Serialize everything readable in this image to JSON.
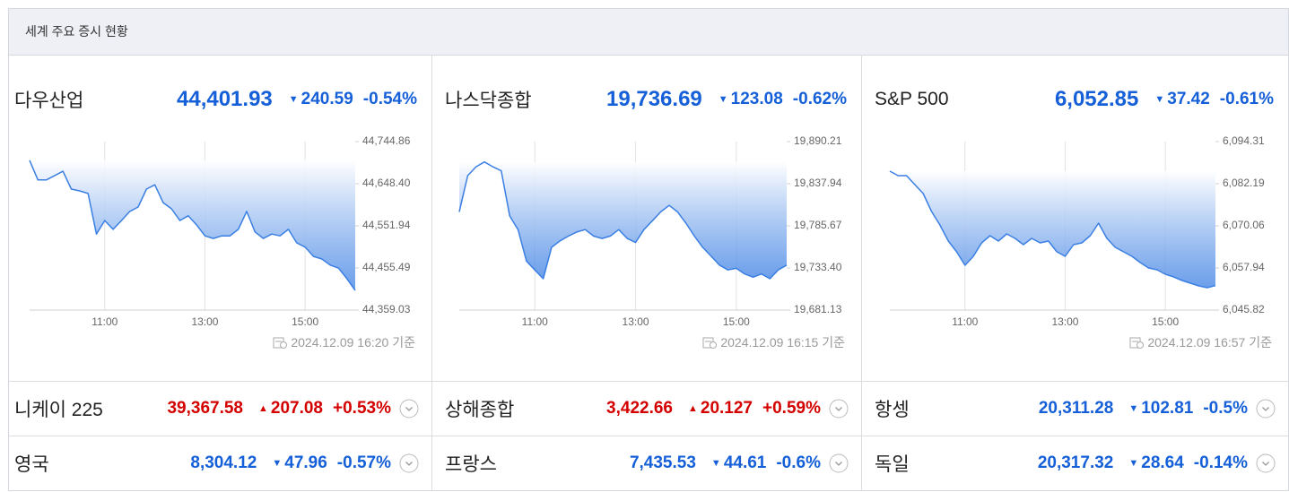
{
  "title": "세계 주요 증시 현황",
  "panels": [
    {
      "name": "다우산업",
      "price": "44,401.93",
      "arrow": "▼",
      "change": "240.59",
      "change_pct": "-0.54%",
      "color": "#1560d8",
      "timestamp": "2024.12.09 16:20 기준"
    },
    {
      "name": "나스닥종합",
      "price": "19,736.69",
      "arrow": "▼",
      "change": "123.08",
      "change_pct": "-0.62%",
      "color": "#1560d8",
      "timestamp": "2024.12.09 16:15 기준"
    },
    {
      "name": "S&P 500",
      "price": "6,052.85",
      "arrow": "▼",
      "change": "37.42",
      "change_pct": "-0.61%",
      "color": "#1560d8",
      "timestamp": "2024.12.09 16:57 기준"
    }
  ],
  "rows": [
    [
      {
        "name": "니케이 225",
        "price": "39,367.58",
        "arrow": "▲",
        "change": "207.08",
        "change_pct": "+0.53%",
        "color": "#d40000"
      },
      {
        "name": "상해종합",
        "price": "3,422.66",
        "arrow": "▲",
        "change": "20.127",
        "change_pct": "+0.59%",
        "color": "#d40000"
      },
      {
        "name": "항셍",
        "price": "20,311.28",
        "arrow": "▼",
        "change": "102.81",
        "change_pct": "-0.5%",
        "color": "#1560d8"
      }
    ],
    [
      {
        "name": "영국",
        "price": "8,304.12",
        "arrow": "▼",
        "change": "47.96",
        "change_pct": "-0.57%",
        "color": "#1560d8"
      },
      {
        "name": "프랑스",
        "price": "7,435.53",
        "arrow": "▼",
        "change": "44.61",
        "change_pct": "-0.6%",
        "color": "#1560d8"
      },
      {
        "name": "독일",
        "price": "20,317.32",
        "arrow": "▼",
        "change": "28.64",
        "change_pct": "-0.14%",
        "color": "#1560d8"
      }
    ]
  ],
  "chart_data": [
    {
      "type": "line",
      "color": "#3b7fe3",
      "grid": "x",
      "x": [
        "09:30",
        "09:40",
        "09:50",
        "10:00",
        "10:10",
        "10:20",
        "10:30",
        "10:40",
        "10:50",
        "11:00",
        "11:10",
        "11:20",
        "11:30",
        "11:40",
        "11:50",
        "12:00",
        "12:10",
        "12:20",
        "12:30",
        "12:40",
        "12:50",
        "13:00",
        "13:10",
        "13:20",
        "13:30",
        "13:40",
        "13:50",
        "14:00",
        "14:10",
        "14:20",
        "14:30",
        "14:40",
        "14:50",
        "15:00",
        "15:10",
        "15:20",
        "15:30",
        "15:40",
        "15:50",
        "16:00"
      ],
      "values": [
        44702,
        44657,
        44657,
        44667,
        44677,
        44636,
        44632,
        44626,
        44533,
        44564,
        44544,
        44564,
        44585,
        44595,
        44636,
        44646,
        44605,
        44591,
        44564,
        44575,
        44554,
        44529,
        44523,
        44529,
        44529,
        44544,
        44585,
        44538,
        44523,
        44533,
        44529,
        44544,
        44513,
        44503,
        44482,
        44476,
        44462,
        44455,
        44431,
        44404
      ],
      "xlim": [
        "09:30",
        "16:00"
      ],
      "xticks": [
        "11:00",
        "13:00",
        "15:00"
      ],
      "ylim": [
        44359.03,
        44744.86
      ],
      "yticks": [
        {
          "value": 44744.86,
          "label": "44,744.86"
        },
        {
          "value": 44648.4,
          "label": "44,648.40"
        },
        {
          "value": 44551.94,
          "label": "44,551.94"
        },
        {
          "value": 44455.49,
          "label": "44,455.49"
        },
        {
          "value": 44359.03,
          "label": "44,359.03"
        }
      ]
    },
    {
      "type": "line",
      "color": "#3b7fe3",
      "grid": "x",
      "x": [
        "09:30",
        "09:40",
        "09:50",
        "10:00",
        "10:10",
        "10:20",
        "10:30",
        "10:40",
        "10:50",
        "11:00",
        "11:10",
        "11:20",
        "11:30",
        "11:40",
        "11:50",
        "12:00",
        "12:10",
        "12:20",
        "12:30",
        "12:40",
        "12:50",
        "13:00",
        "13:10",
        "13:20",
        "13:30",
        "13:40",
        "13:50",
        "14:00",
        "14:10",
        "14:20",
        "14:30",
        "14:40",
        "14:50",
        "15:00",
        "15:10",
        "15:20",
        "15:30",
        "15:40",
        "15:50",
        "16:00"
      ],
      "values": [
        19803,
        19848,
        19859,
        19865,
        19859,
        19854,
        19798,
        19781,
        19742,
        19731,
        19720,
        19759,
        19767,
        19773,
        19778,
        19781,
        19773,
        19770,
        19773,
        19781,
        19770,
        19765,
        19781,
        19792,
        19803,
        19811,
        19803,
        19789,
        19773,
        19759,
        19748,
        19737,
        19731,
        19733,
        19726,
        19722,
        19726,
        19720,
        19731,
        19737
      ],
      "xlim": [
        "09:30",
        "16:00"
      ],
      "xticks": [
        "11:00",
        "13:00",
        "15:00"
      ],
      "ylim": [
        19681.13,
        19890.21
      ],
      "yticks": [
        {
          "value": 19890.21,
          "label": "19,890.21"
        },
        {
          "value": 19837.94,
          "label": "19,837.94"
        },
        {
          "value": 19785.67,
          "label": "19,785.67"
        },
        {
          "value": 19733.4,
          "label": "19,733.40"
        },
        {
          "value": 19681.13,
          "label": "19,681.13"
        }
      ]
    },
    {
      "type": "line",
      "color": "#3b7fe3",
      "grid": "x",
      "x": [
        "09:30",
        "09:40",
        "09:50",
        "10:00",
        "10:10",
        "10:20",
        "10:30",
        "10:40",
        "10:50",
        "11:00",
        "11:10",
        "11:20",
        "11:30",
        "11:40",
        "11:50",
        "12:00",
        "12:10",
        "12:20",
        "12:30",
        "12:40",
        "12:50",
        "13:00",
        "13:10",
        "13:20",
        "13:30",
        "13:40",
        "13:50",
        "14:00",
        "14:10",
        "14:20",
        "14:30",
        "14:40",
        "14:50",
        "15:00",
        "15:10",
        "15:20",
        "15:30",
        "15:40",
        "15:50",
        "16:00"
      ],
      "values": [
        6085.8,
        6084.51,
        6084.51,
        6081.93,
        6079.35,
        6074.19,
        6070.33,
        6065.68,
        6062.59,
        6058.72,
        6061.3,
        6065.17,
        6067.23,
        6065.68,
        6067.75,
        6066.46,
        6064.65,
        6066.46,
        6065.17,
        6065.68,
        6062.59,
        6061.3,
        6064.65,
        6065.17,
        6067.23,
        6070.84,
        6066.46,
        6063.88,
        6062.59,
        6061.3,
        6059.49,
        6057.95,
        6057.43,
        6056.14,
        6055.37,
        6054.34,
        6053.56,
        6052.79,
        6052.27,
        6052.85
      ],
      "xlim": [
        "09:30",
        "16:00"
      ],
      "xticks": [
        "11:00",
        "13:00",
        "15:00"
      ],
      "ylim": [
        6045.82,
        6094.31
      ],
      "yticks": [
        {
          "value": 6094.31,
          "label": "6,094.31"
        },
        {
          "value": 6082.19,
          "label": "6,082.19"
        },
        {
          "value": 6070.06,
          "label": "6,070.06"
        },
        {
          "value": 6057.94,
          "label": "6,057.94"
        },
        {
          "value": 6045.82,
          "label": "6,045.82"
        }
      ]
    }
  ]
}
